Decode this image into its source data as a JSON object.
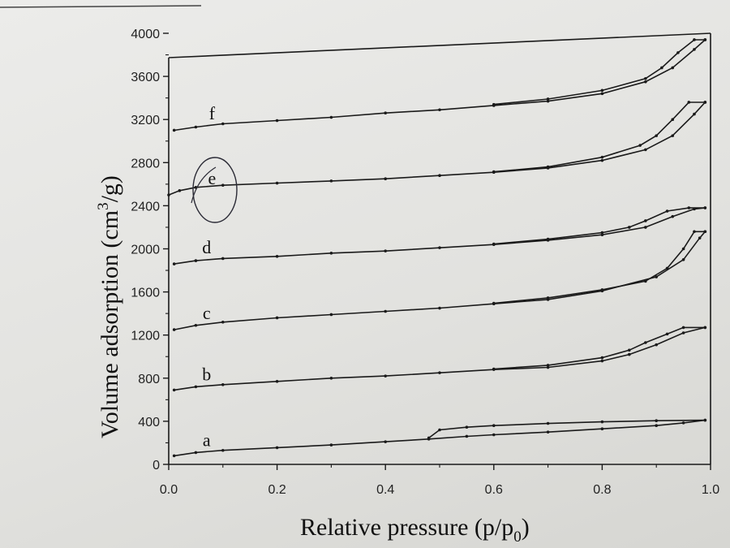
{
  "chart_data": {
    "type": "line",
    "xlabel": "Relative pressure (p/p",
    "xlabel_sub": "0",
    "xlabel_end": ")",
    "ylabel_main": "Volume adsorption (cm",
    "ylabel_sup": "3",
    "ylabel_end": "/g)",
    "xlim": [
      0.0,
      1.0
    ],
    "ylim": [
      0,
      4000
    ],
    "x_ticks": [
      0.0,
      0.2,
      0.4,
      0.6,
      0.8,
      1.0
    ],
    "x_tick_labels": [
      "0.0",
      "0.2",
      "0.4",
      "0.6",
      "0.8",
      "1.0"
    ],
    "y_ticks": [
      0,
      400,
      800,
      1200,
      1600,
      2000,
      2400,
      2800,
      3200,
      3600,
      4000
    ],
    "y_tick_labels": [
      "0",
      "400",
      "800",
      "1200",
      "1600",
      "2000",
      "2400",
      "2800",
      "3200",
      "3600",
      "4000"
    ],
    "series": [
      {
        "name": "a",
        "adsorption": [
          [
            0.01,
            80
          ],
          [
            0.05,
            110
          ],
          [
            0.1,
            130
          ],
          [
            0.2,
            155
          ],
          [
            0.3,
            180
          ],
          [
            0.4,
            210
          ],
          [
            0.48,
            235
          ],
          [
            0.55,
            260
          ],
          [
            0.6,
            275
          ],
          [
            0.7,
            300
          ],
          [
            0.8,
            330
          ],
          [
            0.9,
            360
          ],
          [
            0.95,
            385
          ],
          [
            0.99,
            410
          ]
        ],
        "desorption": [
          [
            0.99,
            410
          ],
          [
            0.9,
            405
          ],
          [
            0.8,
            395
          ],
          [
            0.7,
            380
          ],
          [
            0.6,
            360
          ],
          [
            0.55,
            345
          ],
          [
            0.5,
            320
          ],
          [
            0.48,
            245
          ]
        ]
      },
      {
        "name": "b",
        "adsorption": [
          [
            0.01,
            690
          ],
          [
            0.05,
            720
          ],
          [
            0.1,
            740
          ],
          [
            0.2,
            770
          ],
          [
            0.3,
            800
          ],
          [
            0.4,
            820
          ],
          [
            0.5,
            850
          ],
          [
            0.6,
            880
          ],
          [
            0.7,
            900
          ],
          [
            0.8,
            960
          ],
          [
            0.85,
            1020
          ],
          [
            0.9,
            1110
          ],
          [
            0.95,
            1220
          ],
          [
            0.99,
            1270
          ]
        ],
        "desorption": [
          [
            0.99,
            1270
          ],
          [
            0.95,
            1270
          ],
          [
            0.92,
            1210
          ],
          [
            0.88,
            1130
          ],
          [
            0.85,
            1060
          ],
          [
            0.8,
            990
          ],
          [
            0.7,
            920
          ],
          [
            0.6,
            885
          ]
        ]
      },
      {
        "name": "c",
        "adsorption": [
          [
            0.01,
            1250
          ],
          [
            0.05,
            1290
          ],
          [
            0.1,
            1320
          ],
          [
            0.2,
            1360
          ],
          [
            0.3,
            1390
          ],
          [
            0.4,
            1420
          ],
          [
            0.5,
            1450
          ],
          [
            0.6,
            1490
          ],
          [
            0.7,
            1530
          ],
          [
            0.8,
            1610
          ],
          [
            0.9,
            1740
          ],
          [
            0.95,
            1900
          ],
          [
            0.98,
            2100
          ],
          [
            0.99,
            2160
          ]
        ],
        "desorption": [
          [
            0.99,
            2160
          ],
          [
            0.97,
            2160
          ],
          [
            0.95,
            2000
          ],
          [
            0.92,
            1820
          ],
          [
            0.88,
            1700
          ],
          [
            0.8,
            1620
          ],
          [
            0.7,
            1545
          ],
          [
            0.6,
            1495
          ]
        ]
      },
      {
        "name": "d",
        "adsorption": [
          [
            0.01,
            1860
          ],
          [
            0.05,
            1890
          ],
          [
            0.1,
            1910
          ],
          [
            0.2,
            1930
          ],
          [
            0.3,
            1960
          ],
          [
            0.4,
            1980
          ],
          [
            0.5,
            2010
          ],
          [
            0.6,
            2040
          ],
          [
            0.7,
            2080
          ],
          [
            0.8,
            2130
          ],
          [
            0.88,
            2200
          ],
          [
            0.93,
            2300
          ],
          [
            0.97,
            2370
          ],
          [
            0.99,
            2380
          ]
        ],
        "desorption": [
          [
            0.99,
            2380
          ],
          [
            0.96,
            2380
          ],
          [
            0.92,
            2350
          ],
          [
            0.88,
            2260
          ],
          [
            0.85,
            2200
          ],
          [
            0.8,
            2150
          ],
          [
            0.7,
            2090
          ],
          [
            0.6,
            2045
          ]
        ]
      },
      {
        "name": "e",
        "adsorption": [
          [
            0.0,
            2500
          ],
          [
            0.02,
            2540
          ],
          [
            0.05,
            2570
          ],
          [
            0.1,
            2590
          ],
          [
            0.2,
            2610
          ],
          [
            0.3,
            2630
          ],
          [
            0.4,
            2650
          ],
          [
            0.5,
            2680
          ],
          [
            0.6,
            2710
          ],
          [
            0.7,
            2750
          ],
          [
            0.8,
            2820
          ],
          [
            0.88,
            2920
          ],
          [
            0.93,
            3050
          ],
          [
            0.97,
            3250
          ],
          [
            0.99,
            3360
          ]
        ],
        "desorption": [
          [
            0.99,
            3360
          ],
          [
            0.96,
            3360
          ],
          [
            0.93,
            3200
          ],
          [
            0.9,
            3050
          ],
          [
            0.87,
            2960
          ],
          [
            0.8,
            2850
          ],
          [
            0.7,
            2760
          ],
          [
            0.6,
            2715
          ]
        ]
      },
      {
        "name": "f",
        "adsorption": [
          [
            0.01,
            3100
          ],
          [
            0.05,
            3130
          ],
          [
            0.1,
            3160
          ],
          [
            0.2,
            3190
          ],
          [
            0.3,
            3220
          ],
          [
            0.4,
            3260
          ],
          [
            0.5,
            3290
          ],
          [
            0.6,
            3330
          ],
          [
            0.7,
            3370
          ],
          [
            0.8,
            3440
          ],
          [
            0.88,
            3550
          ],
          [
            0.93,
            3680
          ],
          [
            0.97,
            3850
          ],
          [
            0.99,
            3940
          ]
        ],
        "desorption": [
          [
            0.99,
            3940
          ],
          [
            0.97,
            3940
          ],
          [
            0.94,
            3820
          ],
          [
            0.91,
            3680
          ],
          [
            0.88,
            3580
          ],
          [
            0.8,
            3470
          ],
          [
            0.7,
            3390
          ],
          [
            0.6,
            3340
          ]
        ]
      }
    ],
    "curve_labels": [
      {
        "text": "a",
        "x": 0.07,
        "y": 170
      },
      {
        "text": "b",
        "x": 0.07,
        "y": 780
      },
      {
        "text": "c",
        "x": 0.07,
        "y": 1350
      },
      {
        "text": "d",
        "x": 0.07,
        "y": 1960
      },
      {
        "text": "e",
        "x": 0.08,
        "y": 2600
      },
      {
        "text": "f",
        "x": 0.08,
        "y": 3200
      }
    ]
  }
}
